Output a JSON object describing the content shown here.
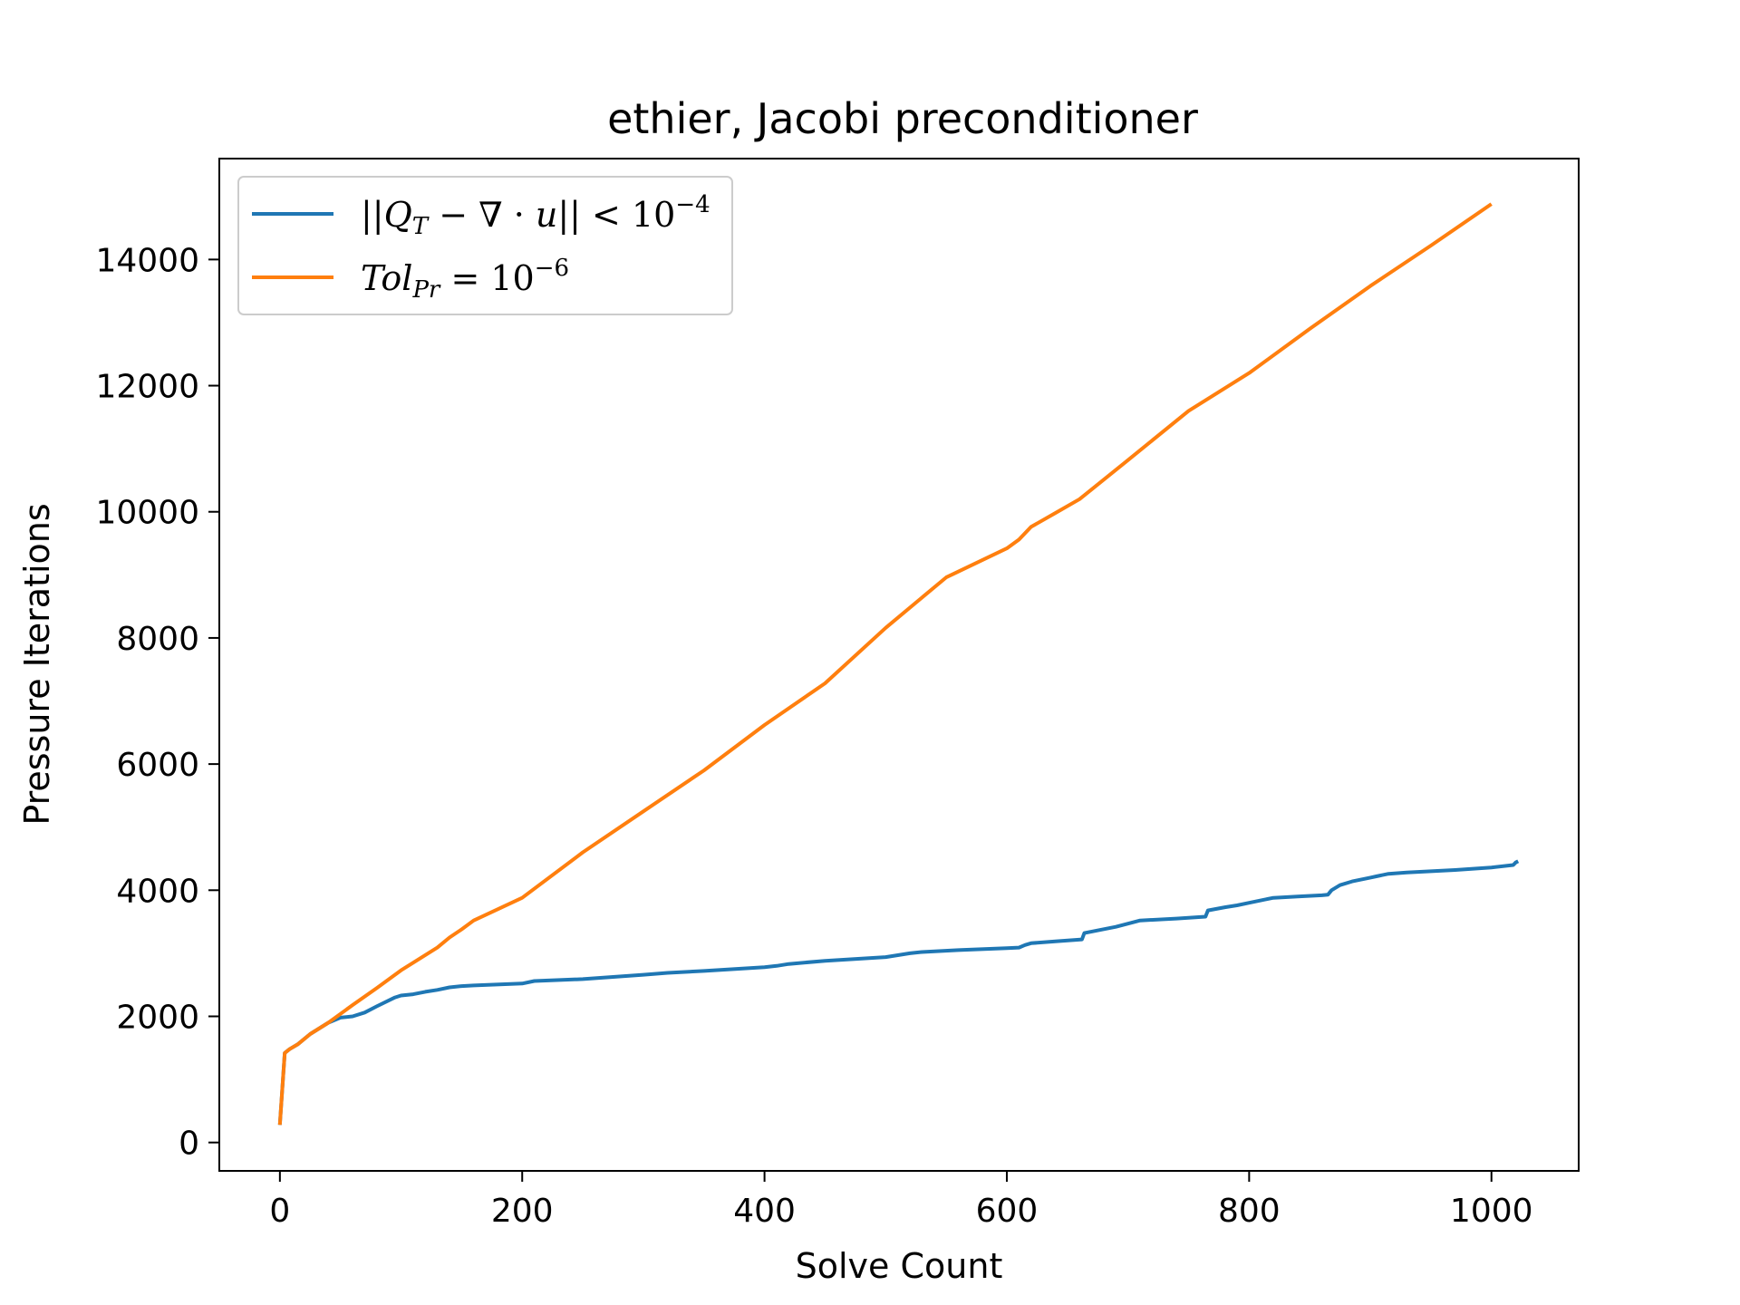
{
  "chart_data": {
    "type": "line",
    "title": "ethier, Jacobi preconditioner",
    "xlabel": "Solve Count",
    "ylabel": "Pressure Iterations",
    "xlim": [
      -50,
      1072
    ],
    "ylim": [
      -450,
      15600
    ],
    "xticks": [
      0,
      200,
      400,
      600,
      800,
      1000
    ],
    "yticks": [
      0,
      2000,
      4000,
      6000,
      8000,
      10000,
      12000,
      14000
    ],
    "grid": false,
    "legend_placement": "upper-left",
    "series": [
      {
        "name": "||Q_T − ∇·u|| < 10^−4",
        "name_parts": {
          "open": "||",
          "q": "Q",
          "sub": "T",
          "mid": " − ∇ · ",
          "u": "u",
          "close": "|| < 10",
          "sup": "−4"
        },
        "color": "#1f77b4",
        "x": [
          0,
          4,
          8,
          15,
          25,
          40,
          50,
          60,
          70,
          80,
          95,
          100,
          110,
          120,
          130,
          140,
          150,
          160,
          200,
          210,
          250,
          300,
          320,
          350,
          400,
          410,
          420,
          450,
          500,
          510,
          520,
          530,
          560,
          600,
          610,
          615,
          620,
          640,
          662,
          664,
          690,
          710,
          740,
          764,
          766,
          780,
          790,
          800,
          810,
          820,
          840,
          860,
          865,
          868,
          875,
          885,
          900,
          905,
          915,
          930,
          950,
          970,
          1000,
          1018,
          1020,
          1022
        ],
        "y": [
          280,
          1420,
          1480,
          1560,
          1720,
          1900,
          1980,
          2000,
          2060,
          2160,
          2300,
          2330,
          2350,
          2390,
          2420,
          2460,
          2480,
          2490,
          2520,
          2560,
          2590,
          2660,
          2690,
          2720,
          2780,
          2800,
          2830,
          2880,
          2940,
          2970,
          3000,
          3020,
          3050,
          3080,
          3090,
          3130,
          3160,
          3190,
          3220,
          3320,
          3420,
          3520,
          3550,
          3580,
          3680,
          3730,
          3760,
          3800,
          3840,
          3880,
          3900,
          3920,
          3930,
          4000,
          4080,
          4140,
          4200,
          4220,
          4260,
          4280,
          4300,
          4320,
          4360,
          4400,
          4440,
          4460
        ]
      },
      {
        "name": "Tol_Pr = 10^−6",
        "name_parts": {
          "t": "Tol",
          "sub": "Pr",
          "mid": " = 10",
          "sup": "−6"
        },
        "color": "#ff7f0e",
        "x": [
          0,
          4,
          8,
          15,
          25,
          40,
          60,
          80,
          100,
          110,
          130,
          140,
          150,
          160,
          200,
          250,
          300,
          350,
          400,
          450,
          500,
          550,
          600,
          610,
          620,
          640,
          660,
          700,
          750,
          800,
          850,
          900,
          950,
          1000
        ],
        "y": [
          280,
          1420,
          1480,
          1560,
          1720,
          1900,
          2180,
          2450,
          2730,
          2850,
          3090,
          3250,
          3380,
          3520,
          3880,
          4600,
          5250,
          5900,
          6620,
          7280,
          8160,
          8960,
          9420,
          9560,
          9760,
          9980,
          10200,
          10820,
          11600,
          12200,
          12900,
          13580,
          14220,
          14880
        ]
      }
    ]
  }
}
